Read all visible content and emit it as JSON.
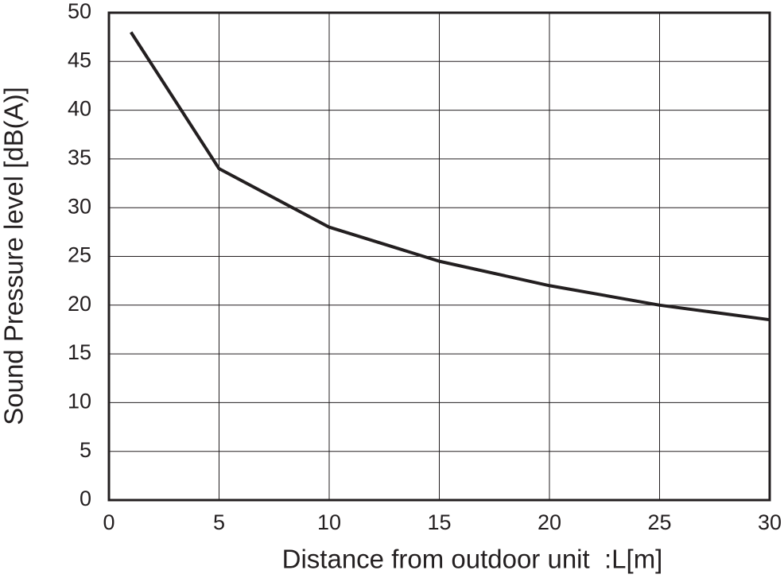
{
  "chart_data": {
    "type": "line",
    "x_label": "Distance from outdoor unit  :L[m]",
    "y_label": "Sound Pressure level [dB(A)]",
    "x": [
      1,
      5,
      10,
      15,
      20,
      25,
      30
    ],
    "values": [
      48,
      34,
      28,
      24.5,
      22,
      20,
      18.5
    ],
    "color": "#231f20",
    "xlim": [
      0,
      30
    ],
    "xticks": [
      0,
      5,
      10,
      15,
      20,
      25,
      30
    ],
    "ylim": [
      0,
      50
    ],
    "yticks": [
      0,
      5,
      10,
      15,
      20,
      25,
      30,
      35,
      40,
      45,
      50
    ],
    "grid": true
  }
}
